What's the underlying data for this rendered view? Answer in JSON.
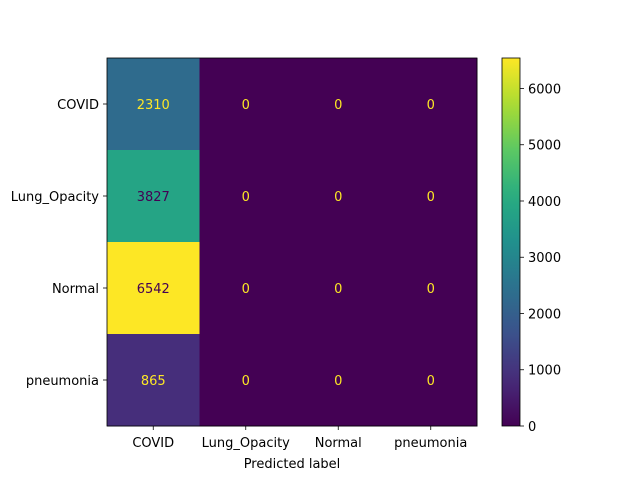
{
  "chart_data": {
    "type": "heatmap",
    "title": "",
    "xlabel": "Predicted label",
    "ylabel": "",
    "x_categories": [
      "COVID",
      "Lung_Opacity",
      "Normal",
      "pneumonia"
    ],
    "y_categories": [
      "COVID",
      "Lung_Opacity",
      "Normal",
      "pneumonia"
    ],
    "values": [
      [
        2310,
        0,
        0,
        0
      ],
      [
        3827,
        0,
        0,
        0
      ],
      [
        6542,
        0,
        0,
        0
      ],
      [
        865,
        0,
        0,
        0
      ]
    ],
    "colormap": "viridis",
    "color_range": [
      0,
      6542
    ],
    "colorbar_ticks": [
      0,
      1000,
      2000,
      3000,
      4000,
      5000,
      6000
    ],
    "text_color_light": "#fde725",
    "text_color_dark": "#440154"
  }
}
